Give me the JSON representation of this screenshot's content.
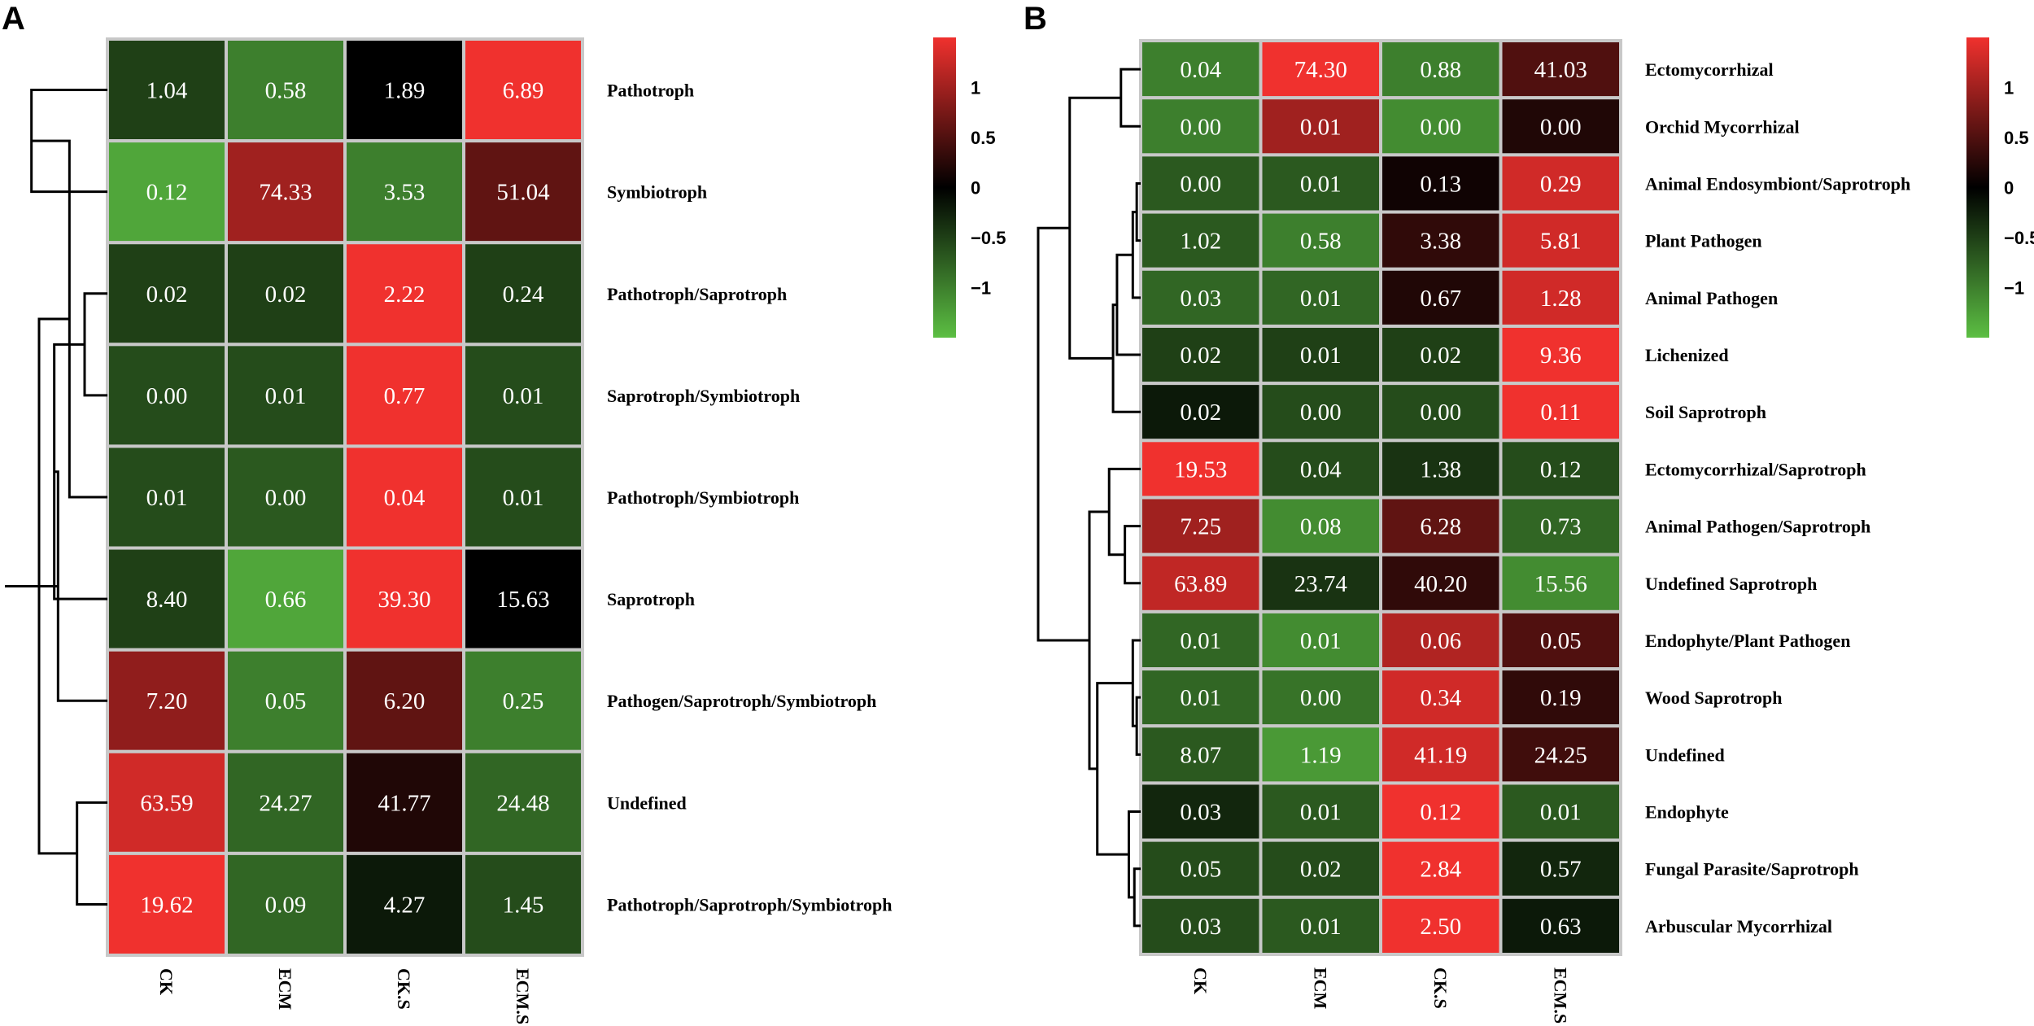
{
  "colors": {
    "low": "#5cbf43",
    "mid": "#000000",
    "high": "#f0312e",
    "grid": "#c8c8c8"
  },
  "chart_data": [
    {
      "type": "heatmap",
      "panel_label": "A",
      "columns": [
        "CK",
        "ECM",
        "CK.S",
        "ECM.S"
      ],
      "rows": [
        "Pathotroph",
        "Symbiotroph",
        "Pathotroph/Saprotroph",
        "Saprotroph/Symbiotroph",
        "Pathotroph/Symbiotroph",
        "Saprotroph",
        "Pathogen/Saprotroph/Symbiotroph",
        "Undefined",
        "Pathotroph/Saprotroph/Symbiotroph"
      ],
      "values": [
        [
          "1.04",
          "0.58",
          "1.89",
          "6.89"
        ],
        [
          "0.12",
          "74.33",
          "3.53",
          "51.04"
        ],
        [
          "0.02",
          "0.02",
          "2.22",
          "0.24"
        ],
        [
          "0.00",
          "0.01",
          "0.77",
          "0.01"
        ],
        [
          "0.01",
          "0.00",
          "0.04",
          "0.01"
        ],
        [
          "8.40",
          "0.66",
          "39.30",
          "15.63"
        ],
        [
          "7.20",
          "0.05",
          "6.20",
          "0.25"
        ],
        [
          "63.59",
          "24.27",
          "41.77",
          "24.48"
        ],
        [
          "19.62",
          "0.09",
          "4.27",
          "1.45"
        ]
      ],
      "scaled": [
        [
          -0.5,
          -1.0,
          0.0,
          1.5
        ],
        [
          -1.3,
          1.0,
          -1.0,
          0.6
        ],
        [
          -0.5,
          -0.5,
          1.5,
          -0.5
        ],
        [
          -0.6,
          -0.6,
          1.5,
          -0.6
        ],
        [
          -0.6,
          -0.7,
          1.5,
          -0.6
        ],
        [
          -0.5,
          -1.3,
          1.5,
          0.0
        ],
        [
          0.9,
          -1.0,
          0.6,
          -1.0
        ],
        [
          1.3,
          -0.8,
          0.2,
          -0.8
        ],
        [
          1.5,
          -0.8,
          -0.2,
          -0.6
        ]
      ],
      "legend": {
        "ticks": [
          1,
          0.5,
          0,
          -0.5,
          -1
        ],
        "tick_labels": [
          "1",
          "0.5",
          "0",
          "−0.5",
          "−1"
        ],
        "range": [
          -1.5,
          1.5
        ]
      },
      "dendrogram": {
        "merges": [
          [
            0,
            1,
            1.0
          ],
          [
            2,
            3,
            0.3
          ],
          [
            9,
            4,
            0.5
          ],
          [
            10,
            5,
            0.7
          ],
          [
            7,
            8,
            0.4
          ],
          [
            6,
            12,
            0.65
          ],
          [
            11,
            13,
            0.9
          ],
          [
            14,
            15,
            1.35
          ]
        ]
      }
    },
    {
      "type": "heatmap",
      "panel_label": "B",
      "columns": [
        "CK",
        "ECM",
        "CK.S",
        "ECM.S"
      ],
      "rows": [
        "Ectomycorrhizal",
        "Orchid Mycorrhizal",
        "Animal Endosymbiont/Saprotroph",
        "Plant Pathogen",
        "Animal Pathogen",
        "Lichenized",
        "Soil Saprotroph",
        "Ectomycorrhizal/Saprotroph",
        "Animal Pathogen/Saprotroph",
        "Undefined Saprotroph",
        "Endophyte/Plant Pathogen",
        "Wood Saprotroph",
        "Undefined",
        "Endophyte",
        "Fungal Parasite/Saprotroph",
        "Arbuscular Mycorrhizal"
      ],
      "values": [
        [
          "0.04",
          "74.30",
          "0.88",
          "41.03"
        ],
        [
          "0.00",
          "0.01",
          "0.00",
          "0.00"
        ],
        [
          "0.00",
          "0.01",
          "0.13",
          "0.29"
        ],
        [
          "1.02",
          "0.58",
          "3.38",
          "5.81"
        ],
        [
          "0.03",
          "0.01",
          "0.67",
          "1.28"
        ],
        [
          "0.02",
          "0.01",
          "0.02",
          "9.36"
        ],
        [
          "0.02",
          "0.00",
          "0.00",
          "0.11"
        ],
        [
          "19.53",
          "0.04",
          "1.38",
          "0.12"
        ],
        [
          "7.25",
          "0.08",
          "6.28",
          "0.73"
        ],
        [
          "63.89",
          "23.74",
          "40.20",
          "15.56"
        ],
        [
          "0.01",
          "0.01",
          "0.06",
          "0.05"
        ],
        [
          "0.01",
          "0.00",
          "0.34",
          "0.19"
        ],
        [
          "8.07",
          "1.19",
          "41.19",
          "24.25"
        ],
        [
          "0.03",
          "0.01",
          "0.12",
          "0.01"
        ],
        [
          "0.05",
          "0.02",
          "2.84",
          "0.57"
        ],
        [
          "0.03",
          "0.01",
          "2.50",
          "0.63"
        ]
      ],
      "scaled": [
        [
          -1.0,
          1.5,
          -1.0,
          0.5
        ],
        [
          -1.0,
          1.0,
          -1.1,
          0.2
        ],
        [
          -0.7,
          -0.7,
          0.1,
          1.3
        ],
        [
          -0.7,
          -1.0,
          0.3,
          1.3
        ],
        [
          -0.8,
          -0.8,
          0.2,
          1.3
        ],
        [
          -0.5,
          -0.5,
          -0.5,
          1.5
        ],
        [
          -0.2,
          -0.6,
          -0.6,
          1.5
        ],
        [
          1.5,
          -0.6,
          -0.4,
          -0.6
        ],
        [
          1.0,
          -1.1,
          0.6,
          -0.8
        ],
        [
          1.2,
          -0.4,
          0.3,
          -1.1
        ],
        [
          -0.8,
          -1.1,
          1.1,
          0.5
        ],
        [
          -0.8,
          -0.9,
          1.3,
          0.3
        ],
        [
          -0.7,
          -1.2,
          1.3,
          0.4
        ],
        [
          -0.3,
          -0.7,
          1.5,
          -0.7
        ],
        [
          -0.6,
          -0.6,
          1.5,
          -0.3
        ],
        [
          -0.6,
          -0.7,
          1.5,
          -0.2
        ]
      ],
      "legend": {
        "ticks": [
          1,
          0.5,
          0,
          -0.5,
          -1
        ],
        "tick_labels": [
          "1",
          "0.5",
          "0",
          "−0.5",
          "−1"
        ],
        "range": [
          -1.5,
          1.5
        ]
      },
      "dendrogram": {
        "merges": [
          [
            0,
            1,
            0.25
          ],
          [
            2,
            3,
            0.05
          ],
          [
            17,
            4,
            0.1
          ],
          [
            18,
            5,
            0.3
          ],
          [
            19,
            6,
            0.35
          ],
          [
            16,
            20,
            0.9
          ],
          [
            8,
            9,
            0.2
          ],
          [
            22,
            7,
            0.4
          ],
          [
            11,
            12,
            0.05
          ],
          [
            10,
            24,
            0.1
          ],
          [
            14,
            15,
            0.08
          ],
          [
            13,
            26,
            0.15
          ],
          [
            25,
            27,
            0.55
          ],
          [
            23,
            28,
            0.65
          ],
          [
            21,
            29,
            1.3
          ]
        ]
      }
    }
  ]
}
